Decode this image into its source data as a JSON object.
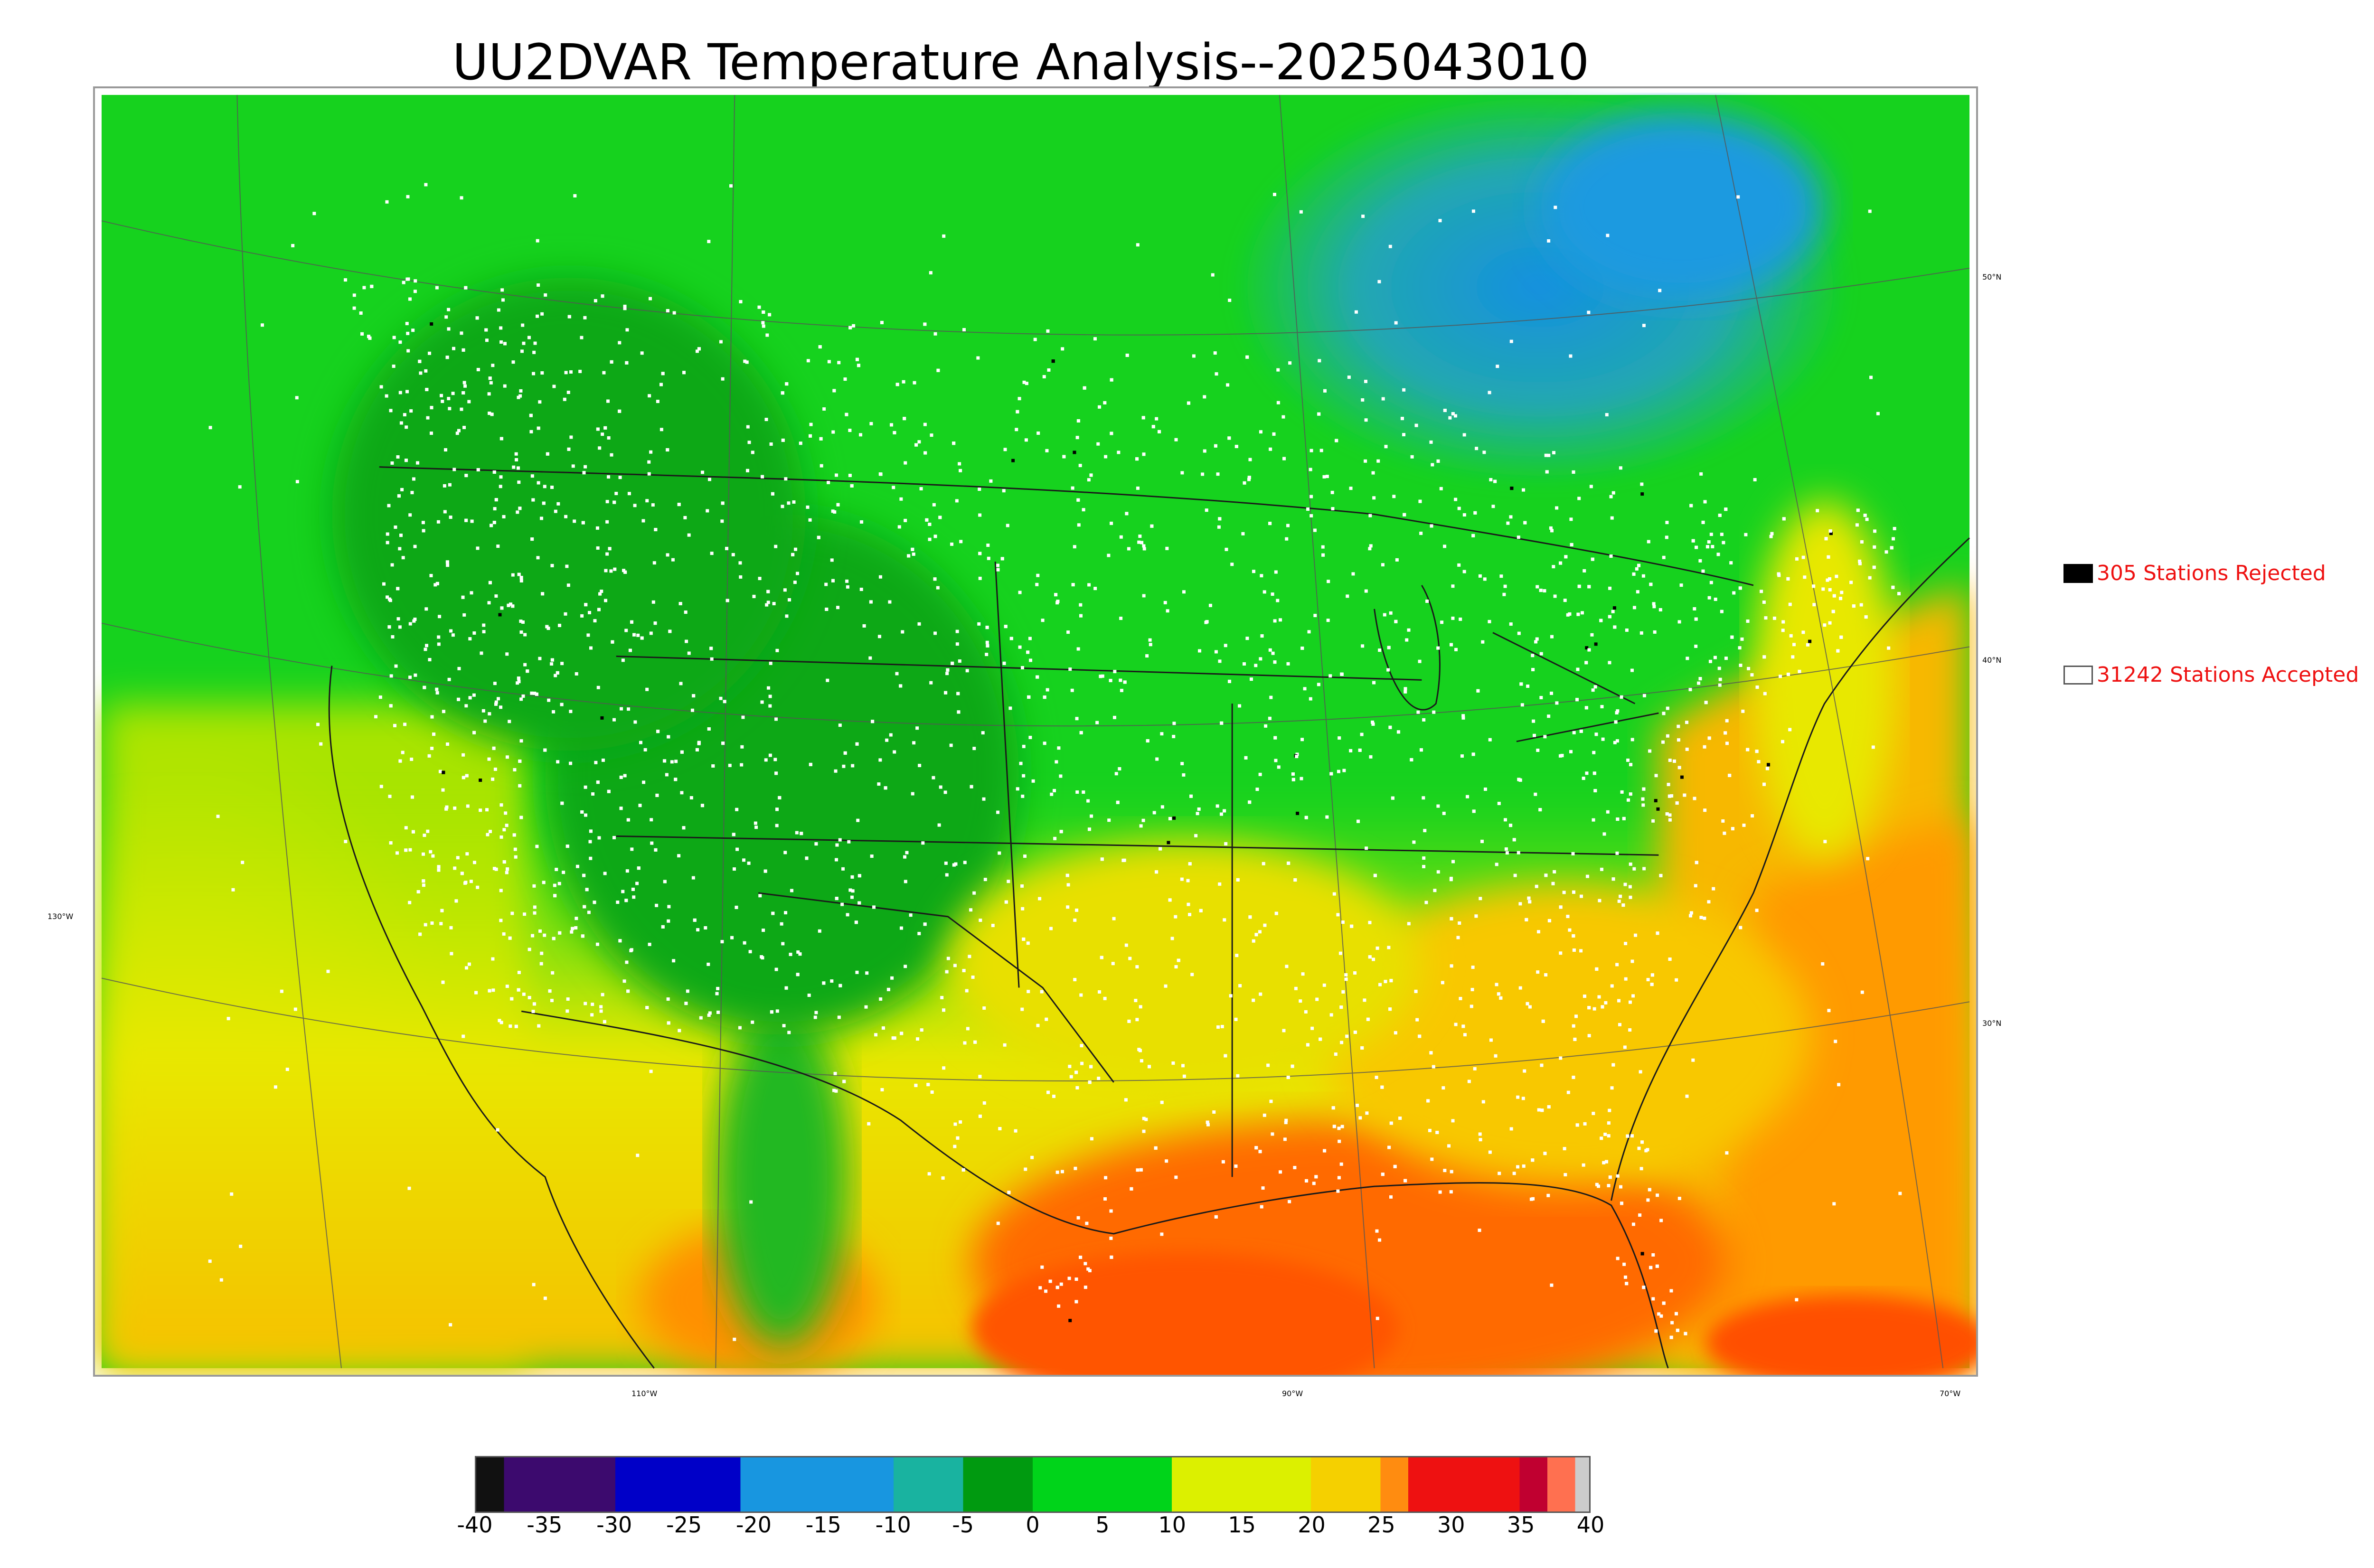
{
  "title": "UU2DVAR Temperature Analysis--2025043010",
  "map": {
    "lat_labels": [
      "50°N",
      "40°N",
      "30°N"
    ],
    "lon_labels": [
      "130°W",
      "110°W",
      "90°W",
      "70°W"
    ]
  },
  "legend": {
    "rejected": {
      "text": "305 Stations Rejected",
      "color": "#000000"
    },
    "accepted": {
      "text": "31242 Stations Accepted",
      "color": "#ffffff"
    }
  },
  "colorbar": {
    "min": -40,
    "max": 40,
    "ticks": [
      "-40",
      "-35",
      "-30",
      "-25",
      "-20",
      "-15",
      "-10",
      "-5",
      "0",
      "5",
      "10",
      "15",
      "20",
      "25",
      "30",
      "35",
      "40"
    ],
    "stops": [
      {
        "value": -40,
        "color": "#111111"
      },
      {
        "value": -38,
        "color": "#3c0a6e"
      },
      {
        "value": -30,
        "color": "#0000c8"
      },
      {
        "value": -21,
        "color": "#1896e0"
      },
      {
        "value": -10,
        "color": "#19b3a0"
      },
      {
        "value": -5,
        "color": "#009a10"
      },
      {
        "value": 0,
        "color": "#00d41a"
      },
      {
        "value": 10,
        "color": "#dcf000"
      },
      {
        "value": 20,
        "color": "#f5d000"
      },
      {
        "value": 25,
        "color": "#ff8c10"
      },
      {
        "value": 27,
        "color": "#ee1111"
      },
      {
        "value": 35,
        "color": "#c00030"
      },
      {
        "value": 37,
        "color": "#ff7050"
      },
      {
        "value": 39,
        "color": "#cccccc"
      },
      {
        "value": 40,
        "color": "#d4d4d4"
      }
    ]
  },
  "colors": {
    "ocean_warm": "#ff6a00",
    "land_cool": "#00c820",
    "canada_cold": "#1a9ad0",
    "station_accepted": "#ffffff",
    "station_rejected": "#000000",
    "legend_text": "#ee1111"
  }
}
